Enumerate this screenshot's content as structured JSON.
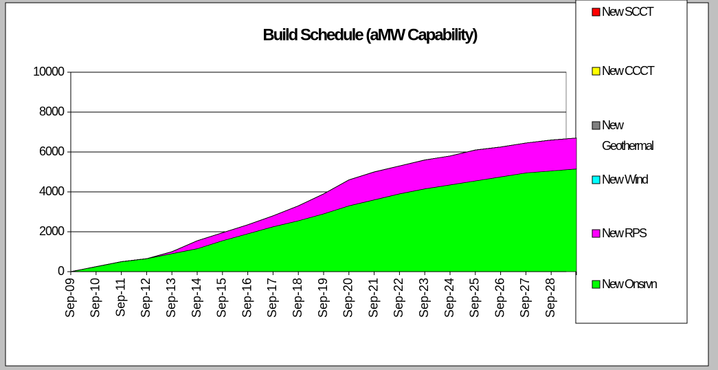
{
  "chart_data": {
    "type": "stacked-area",
    "title": "Build Schedule (aMW Capability)",
    "categories": [
      "Sep-09",
      "Sep-10",
      "Sep-11",
      "Sep-12",
      "Sep-13",
      "Sep-14",
      "Sep-15",
      "Sep-16",
      "Sep-17",
      "Sep-18",
      "Sep-19",
      "Sep-20",
      "Sep-21",
      "Sep-22",
      "Sep-23",
      "Sep-24",
      "Sep-25",
      "Sep-26",
      "Sep-27",
      "Sep-28",
      null
    ],
    "series": [
      {
        "name": "New Onsrvn",
        "color": "#00ff00",
        "values": [
          0,
          250,
          500,
          650,
          900,
          1150,
          1550,
          1900,
          2250,
          2550,
          2900,
          3300,
          3600,
          3900,
          4150,
          4350,
          4550,
          4750,
          4950,
          5050,
          5150
        ]
      },
      {
        "name": "New RPS",
        "color": "#ff00ff",
        "values": [
          0,
          0,
          0,
          0,
          100,
          400,
          400,
          450,
          550,
          750,
          1000,
          1300,
          1400,
          1400,
          1450,
          1450,
          1550,
          1500,
          1500,
          1550,
          1550
        ]
      },
      {
        "name": "New Wind",
        "color": "#00ffff",
        "values": [
          0,
          0,
          0,
          0,
          0,
          0,
          0,
          0,
          0,
          0,
          0,
          0,
          0,
          0,
          0,
          0,
          0,
          0,
          0,
          0,
          0
        ]
      },
      {
        "name": "New Geothermal",
        "color": "#808080",
        "values": [
          0,
          0,
          0,
          0,
          0,
          0,
          0,
          0,
          0,
          0,
          0,
          0,
          0,
          0,
          0,
          0,
          0,
          0,
          0,
          0,
          0
        ]
      },
      {
        "name": "New CCCT",
        "color": "#ffff00",
        "values": [
          0,
          0,
          0,
          0,
          0,
          0,
          0,
          0,
          0,
          0,
          0,
          0,
          0,
          0,
          0,
          0,
          0,
          0,
          0,
          0,
          0
        ]
      },
      {
        "name": "New SCCT",
        "color": "#ff0000",
        "values": [
          0,
          0,
          0,
          0,
          0,
          0,
          0,
          0,
          0,
          0,
          0,
          0,
          0,
          0,
          0,
          0,
          0,
          0,
          0,
          0,
          0
        ]
      }
    ],
    "ylim": [
      0,
      10000
    ],
    "yticks": [
      0,
      2000,
      4000,
      6000,
      8000,
      10000
    ],
    "grid": true
  }
}
